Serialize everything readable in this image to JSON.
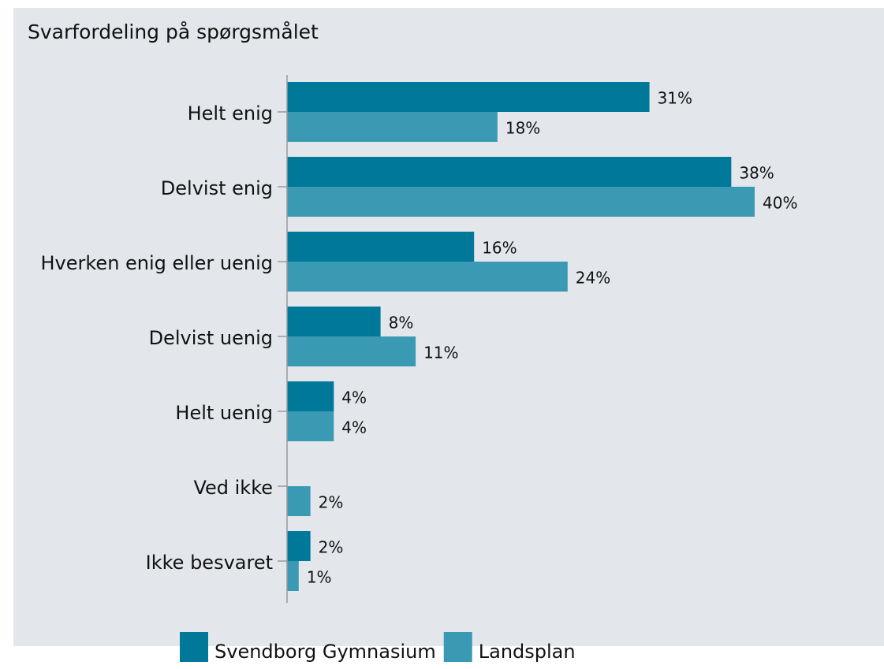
{
  "chart_data": {
    "type": "bar",
    "orientation": "horizontal",
    "title": "Svarfordeling på spørgsmålet",
    "categories": [
      "Helt enig",
      "Delvist enig",
      "Hverken enig eller uenig",
      "Delvist uenig",
      "Helt uenig",
      "Ved ikke",
      "Ikke besvaret"
    ],
    "series": [
      {
        "name": "Svendborg Gymnasium",
        "color": "#00789a",
        "values": [
          31,
          38,
          16,
          8,
          4,
          null,
          2
        ],
        "value_labels": [
          "31%",
          "38%",
          "16%",
          "8%",
          "4%",
          null,
          "2%"
        ]
      },
      {
        "name": "Landsplan",
        "color": "#3b9ab3",
        "values": [
          18,
          40,
          24,
          11,
          4,
          2,
          1
        ],
        "value_labels": [
          "18%",
          "40%",
          "24%",
          "11%",
          "4%",
          "2%",
          "1%"
        ]
      }
    ],
    "xlim": [
      0,
      40
    ],
    "legend": "bottom"
  }
}
